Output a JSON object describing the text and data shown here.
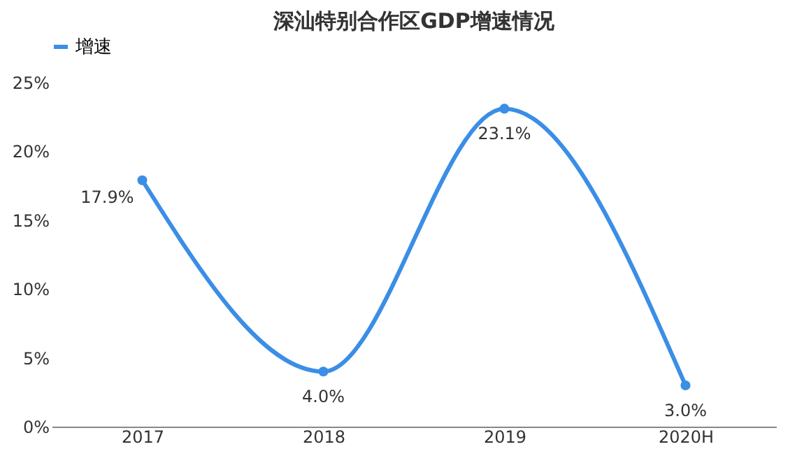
{
  "chart_data": {
    "type": "line",
    "title": "深汕特别合作区GDP增速情况",
    "categories": [
      "2017",
      "2018",
      "2019",
      "2020H"
    ],
    "series": [
      {
        "name": "增速",
        "color": "#3b8ee6",
        "values": [
          17.9,
          4.0,
          23.1,
          3.0
        ],
        "value_labels": [
          "17.9%",
          "4.0%",
          "23.1%",
          "3.0%"
        ]
      }
    ],
    "ylim": [
      0,
      25
    ],
    "yticks": [
      {
        "value": 0,
        "label": "0%"
      },
      {
        "value": 5,
        "label": "5%"
      },
      {
        "value": 10,
        "label": "10%"
      },
      {
        "value": 15,
        "label": "15%"
      },
      {
        "value": 20,
        "label": "20%"
      },
      {
        "value": 25,
        "label": "25%"
      }
    ],
    "legend": "top",
    "marker": "circle",
    "line_style": "solid",
    "grid": false
  }
}
